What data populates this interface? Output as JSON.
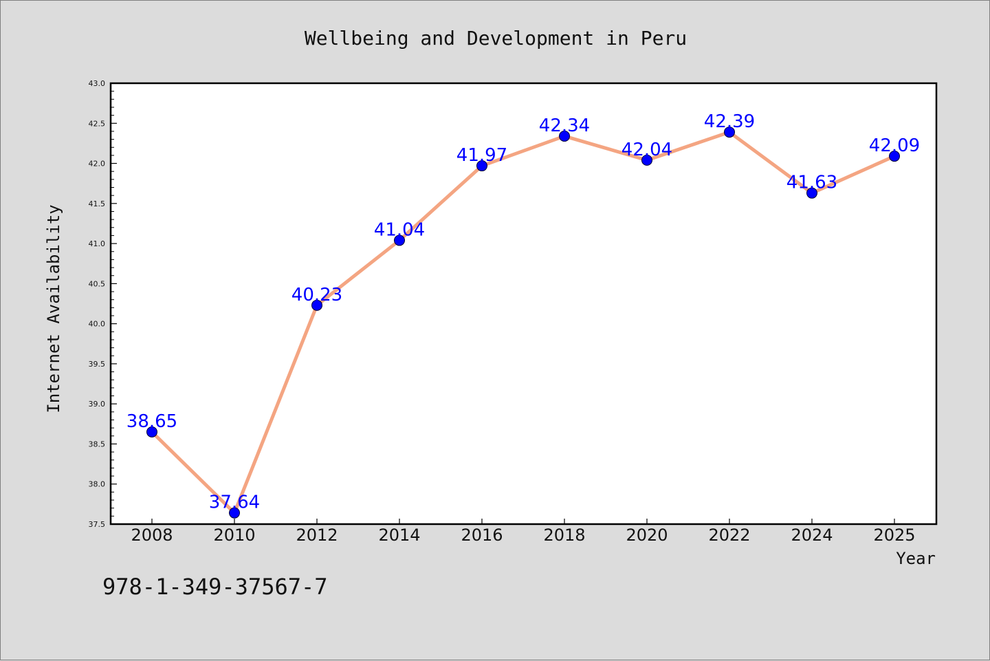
{
  "chart_data": {
    "type": "line",
    "title": "Wellbeing and Development in Peru",
    "xlabel": "Year",
    "ylabel": "Internet Availability",
    "categories": [
      "2008",
      "2010",
      "2012",
      "2014",
      "2016",
      "2018",
      "2020",
      "2022",
      "2024",
      "2025"
    ],
    "values": [
      38.65,
      37.64,
      40.23,
      41.04,
      41.97,
      42.34,
      42.04,
      42.39,
      41.63,
      42.09
    ],
    "data_labels": [
      "38.65",
      "37.64",
      "40.23",
      "41.04",
      "41.97",
      "42.34",
      "42.04",
      "42.39",
      "41.63",
      "42.09"
    ],
    "ylim": [
      37.5,
      43.0
    ],
    "yticks": [
      "37.5",
      "38.0",
      "38.5",
      "39.0",
      "39.5",
      "40.0",
      "40.5",
      "41.0",
      "41.5",
      "42.0",
      "42.5",
      "43.0"
    ],
    "grid": false,
    "line_color": "#f4a582",
    "marker_color": "#0000ff",
    "label_color": "#0000ff"
  },
  "isbn": "978-1-349-37567-7"
}
